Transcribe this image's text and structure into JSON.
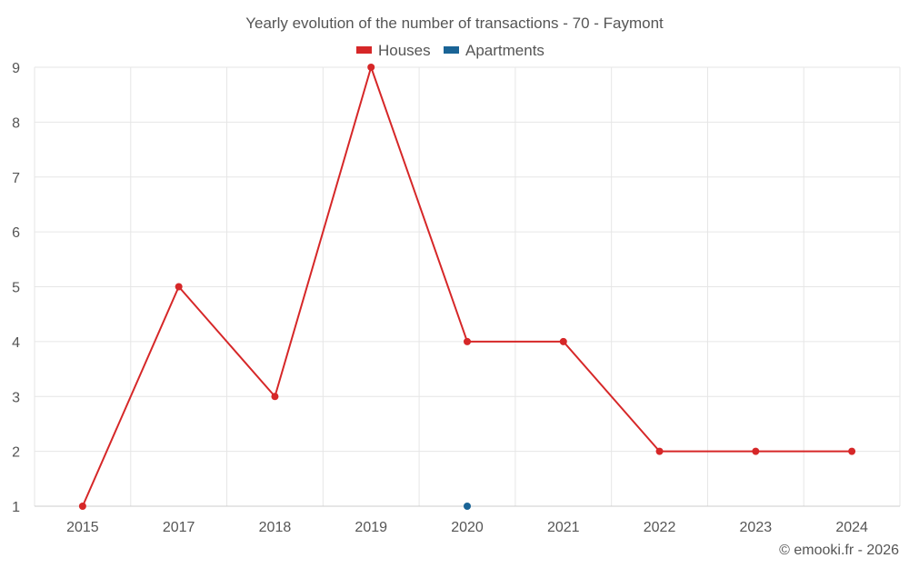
{
  "chart_data": {
    "type": "line",
    "title": "Yearly evolution of the number of transactions - 70 - Faymont",
    "categories": [
      "2015",
      "2017",
      "2018",
      "2019",
      "2020",
      "2021",
      "2022",
      "2023",
      "2024"
    ],
    "series": [
      {
        "name": "Houses",
        "color": "#d62728",
        "values": [
          1,
          5,
          3,
          9,
          4,
          4,
          2,
          2,
          2
        ]
      },
      {
        "name": "Apartments",
        "color": "#1a6496",
        "values": [
          null,
          null,
          null,
          null,
          1,
          null,
          null,
          null,
          null
        ]
      }
    ],
    "y_ticks": [
      1,
      2,
      3,
      4,
      5,
      6,
      7,
      8,
      9
    ],
    "ylim": [
      1,
      9
    ],
    "grid": true,
    "legend_position": "top-center",
    "xlabel": "",
    "ylabel": ""
  },
  "credit": "© emooki.fr - 2026"
}
